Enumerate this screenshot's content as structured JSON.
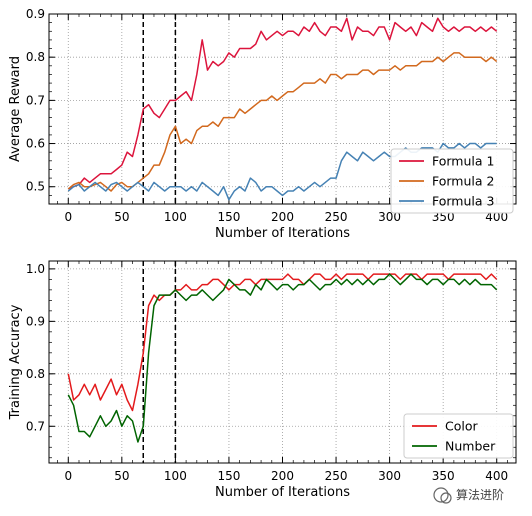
{
  "watermark": {
    "text": "算法进阶"
  },
  "chart_data": [
    {
      "type": "line",
      "title": "",
      "xlabel": "Number of Iterations",
      "ylabel": "Average Reward",
      "xlim": [
        -18,
        418
      ],
      "ylim": [
        0.46,
        0.9
      ],
      "xticks": [
        0,
        50,
        100,
        150,
        200,
        250,
        300,
        350,
        400
      ],
      "yticks": [
        0.5,
        0.6,
        0.7,
        0.8,
        0.9
      ],
      "ytick_labels": [
        "0.5",
        "0.6",
        "0.7",
        "0.8",
        "0.9"
      ],
      "grid": true,
      "legend_position": "lower-right",
      "vlines": [
        70,
        100
      ],
      "series": [
        {
          "name": "Formula 1",
          "color": "#dc143c",
          "x": [
            0,
            5,
            10,
            15,
            20,
            25,
            30,
            35,
            40,
            45,
            50,
            55,
            60,
            65,
            70,
            75,
            80,
            85,
            90,
            95,
            100,
            105,
            110,
            115,
            120,
            125,
            130,
            135,
            140,
            145,
            150,
            155,
            160,
            165,
            170,
            175,
            180,
            185,
            190,
            195,
            200,
            205,
            210,
            215,
            220,
            225,
            230,
            235,
            240,
            245,
            250,
            255,
            260,
            265,
            270,
            275,
            280,
            285,
            290,
            295,
            300,
            305,
            310,
            315,
            320,
            325,
            330,
            335,
            340,
            345,
            350,
            355,
            360,
            365,
            370,
            375,
            380,
            385,
            390,
            395,
            400
          ],
          "y": [
            0.495,
            0.5,
            0.505,
            0.52,
            0.51,
            0.52,
            0.53,
            0.53,
            0.53,
            0.54,
            0.55,
            0.58,
            0.57,
            0.62,
            0.68,
            0.69,
            0.67,
            0.66,
            0.68,
            0.7,
            0.7,
            0.71,
            0.72,
            0.7,
            0.76,
            0.84,
            0.77,
            0.79,
            0.78,
            0.79,
            0.81,
            0.8,
            0.82,
            0.82,
            0.82,
            0.83,
            0.86,
            0.84,
            0.85,
            0.86,
            0.85,
            0.86,
            0.86,
            0.85,
            0.87,
            0.86,
            0.88,
            0.86,
            0.85,
            0.87,
            0.87,
            0.86,
            0.89,
            0.84,
            0.87,
            0.86,
            0.86,
            0.85,
            0.87,
            0.87,
            0.84,
            0.88,
            0.87,
            0.86,
            0.87,
            0.85,
            0.88,
            0.87,
            0.86,
            0.89,
            0.87,
            0.86,
            0.87,
            0.86,
            0.87,
            0.87,
            0.86,
            0.87,
            0.86,
            0.87,
            0.86
          ]
        },
        {
          "name": "Formula 2",
          "color": "#d2691e",
          "x": [
            0,
            5,
            10,
            15,
            20,
            25,
            30,
            35,
            40,
            45,
            50,
            55,
            60,
            65,
            70,
            75,
            80,
            85,
            90,
            95,
            100,
            105,
            110,
            115,
            120,
            125,
            130,
            135,
            140,
            145,
            150,
            155,
            160,
            165,
            170,
            175,
            180,
            185,
            190,
            195,
            200,
            205,
            210,
            215,
            220,
            225,
            230,
            235,
            240,
            245,
            250,
            255,
            260,
            265,
            270,
            275,
            280,
            285,
            290,
            295,
            300,
            305,
            310,
            315,
            320,
            325,
            330,
            335,
            340,
            345,
            350,
            355,
            360,
            365,
            370,
            375,
            380,
            385,
            390,
            395,
            400
          ],
          "y": [
            0.495,
            0.505,
            0.51,
            0.5,
            0.5,
            0.505,
            0.51,
            0.5,
            0.49,
            0.505,
            0.51,
            0.5,
            0.5,
            0.51,
            0.52,
            0.53,
            0.55,
            0.55,
            0.58,
            0.62,
            0.64,
            0.6,
            0.61,
            0.6,
            0.63,
            0.64,
            0.64,
            0.65,
            0.64,
            0.66,
            0.66,
            0.66,
            0.68,
            0.67,
            0.68,
            0.69,
            0.7,
            0.7,
            0.71,
            0.7,
            0.71,
            0.72,
            0.72,
            0.73,
            0.74,
            0.74,
            0.74,
            0.75,
            0.74,
            0.76,
            0.76,
            0.75,
            0.76,
            0.76,
            0.76,
            0.77,
            0.77,
            0.76,
            0.77,
            0.77,
            0.77,
            0.78,
            0.77,
            0.78,
            0.78,
            0.78,
            0.79,
            0.79,
            0.79,
            0.8,
            0.79,
            0.8,
            0.81,
            0.81,
            0.8,
            0.8,
            0.8,
            0.8,
            0.79,
            0.8,
            0.79
          ]
        },
        {
          "name": "Formula 3",
          "color": "#4682b4",
          "x": [
            0,
            5,
            10,
            15,
            20,
            25,
            30,
            35,
            40,
            45,
            50,
            55,
            60,
            65,
            70,
            75,
            80,
            85,
            90,
            95,
            100,
            105,
            110,
            115,
            120,
            125,
            130,
            135,
            140,
            145,
            150,
            155,
            160,
            165,
            170,
            175,
            180,
            185,
            190,
            195,
            200,
            205,
            210,
            215,
            220,
            225,
            230,
            235,
            240,
            245,
            250,
            255,
            260,
            265,
            270,
            275,
            280,
            285,
            290,
            295,
            300,
            305,
            310,
            315,
            320,
            325,
            330,
            335,
            340,
            345,
            350,
            355,
            360,
            365,
            370,
            375,
            380,
            385,
            390,
            395,
            400
          ],
          "y": [
            0.49,
            0.5,
            0.505,
            0.49,
            0.5,
            0.51,
            0.5,
            0.49,
            0.505,
            0.51,
            0.5,
            0.49,
            0.5,
            0.51,
            0.5,
            0.49,
            0.51,
            0.5,
            0.49,
            0.5,
            0.5,
            0.5,
            0.49,
            0.5,
            0.49,
            0.51,
            0.5,
            0.49,
            0.48,
            0.5,
            0.47,
            0.49,
            0.5,
            0.49,
            0.52,
            0.51,
            0.49,
            0.5,
            0.5,
            0.49,
            0.48,
            0.49,
            0.49,
            0.5,
            0.49,
            0.5,
            0.51,
            0.5,
            0.51,
            0.52,
            0.52,
            0.56,
            0.58,
            0.57,
            0.56,
            0.58,
            0.57,
            0.56,
            0.57,
            0.58,
            0.57,
            0.57,
            0.58,
            0.59,
            0.58,
            0.58,
            0.59,
            0.59,
            0.59,
            0.58,
            0.6,
            0.59,
            0.59,
            0.6,
            0.59,
            0.6,
            0.6,
            0.59,
            0.6,
            0.6,
            0.6
          ]
        }
      ]
    },
    {
      "type": "line",
      "title": "",
      "xlabel": "Number of Iterations",
      "ylabel": "Training Accuracy",
      "xlim": [
        -18,
        418
      ],
      "ylim": [
        0.63,
        1.015
      ],
      "xticks": [
        0,
        50,
        100,
        150,
        200,
        250,
        300,
        350,
        400
      ],
      "yticks": [
        0.7,
        0.8,
        0.9,
        1.0
      ],
      "ytick_labels": [
        "0.7",
        "0.8",
        "0.9",
        "1.0"
      ],
      "grid": true,
      "legend_position": "lower-right",
      "vlines": [
        70,
        100
      ],
      "series": [
        {
          "name": "Color",
          "color": "#e31a1c",
          "x": [
            0,
            5,
            10,
            15,
            20,
            25,
            30,
            35,
            40,
            45,
            50,
            55,
            60,
            65,
            70,
            75,
            80,
            85,
            90,
            95,
            100,
            105,
            110,
            115,
            120,
            125,
            130,
            135,
            140,
            145,
            150,
            155,
            160,
            165,
            170,
            175,
            180,
            185,
            190,
            195,
            200,
            205,
            210,
            215,
            220,
            225,
            230,
            235,
            240,
            245,
            250,
            255,
            260,
            265,
            270,
            275,
            280,
            285,
            290,
            295,
            300,
            305,
            310,
            315,
            320,
            325,
            330,
            335,
            340,
            345,
            350,
            355,
            360,
            365,
            370,
            375,
            380,
            385,
            390,
            395,
            400
          ],
          "y": [
            0.8,
            0.75,
            0.76,
            0.78,
            0.76,
            0.78,
            0.75,
            0.77,
            0.79,
            0.76,
            0.78,
            0.75,
            0.73,
            0.78,
            0.84,
            0.93,
            0.95,
            0.94,
            0.95,
            0.95,
            0.96,
            0.96,
            0.97,
            0.96,
            0.96,
            0.97,
            0.97,
            0.98,
            0.98,
            0.97,
            0.96,
            0.97,
            0.97,
            0.98,
            0.98,
            0.97,
            0.98,
            0.98,
            0.98,
            0.98,
            0.98,
            0.99,
            0.98,
            0.98,
            0.97,
            0.98,
            0.99,
            0.99,
            0.98,
            0.98,
            0.99,
            0.98,
            0.99,
            0.99,
            0.99,
            0.99,
            0.98,
            0.99,
            0.99,
            0.99,
            0.99,
            0.99,
            0.98,
            0.99,
            0.99,
            0.99,
            0.98,
            0.99,
            0.99,
            0.99,
            0.99,
            0.98,
            0.99,
            0.99,
            0.99,
            0.99,
            0.99,
            0.99,
            0.98,
            0.99,
            0.98
          ]
        },
        {
          "name": "Number",
          "color": "#006400",
          "x": [
            0,
            5,
            10,
            15,
            20,
            25,
            30,
            35,
            40,
            45,
            50,
            55,
            60,
            65,
            70,
            75,
            80,
            85,
            90,
            95,
            100,
            105,
            110,
            115,
            120,
            125,
            130,
            135,
            140,
            145,
            150,
            155,
            160,
            165,
            170,
            175,
            180,
            185,
            190,
            195,
            200,
            205,
            210,
            215,
            220,
            225,
            230,
            235,
            240,
            245,
            250,
            255,
            260,
            265,
            270,
            275,
            280,
            285,
            290,
            295,
            300,
            305,
            310,
            315,
            320,
            325,
            330,
            335,
            340,
            345,
            350,
            355,
            360,
            365,
            370,
            375,
            380,
            385,
            390,
            395,
            400
          ],
          "y": [
            0.76,
            0.74,
            0.69,
            0.69,
            0.68,
            0.7,
            0.72,
            0.7,
            0.71,
            0.73,
            0.7,
            0.72,
            0.71,
            0.67,
            0.7,
            0.84,
            0.93,
            0.95,
            0.95,
            0.95,
            0.96,
            0.95,
            0.94,
            0.95,
            0.95,
            0.96,
            0.95,
            0.94,
            0.95,
            0.96,
            0.98,
            0.97,
            0.96,
            0.96,
            0.95,
            0.97,
            0.96,
            0.98,
            0.97,
            0.96,
            0.97,
            0.97,
            0.96,
            0.97,
            0.97,
            0.98,
            0.97,
            0.96,
            0.97,
            0.97,
            0.98,
            0.97,
            0.98,
            0.97,
            0.98,
            0.97,
            0.98,
            0.97,
            0.98,
            0.98,
            0.99,
            0.98,
            0.97,
            0.98,
            0.99,
            0.98,
            0.98,
            0.97,
            0.98,
            0.98,
            0.97,
            0.98,
            0.98,
            0.97,
            0.98,
            0.97,
            0.98,
            0.97,
            0.97,
            0.97,
            0.96
          ]
        }
      ]
    }
  ]
}
